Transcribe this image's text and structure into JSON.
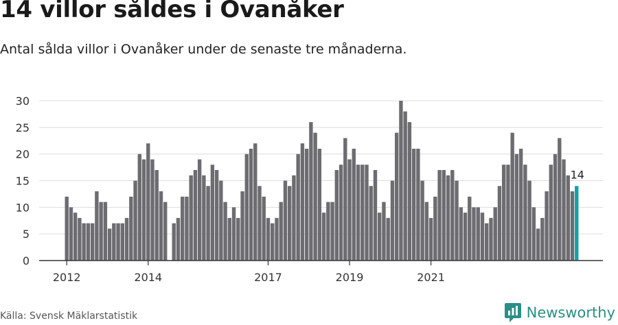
{
  "header": {
    "title": "14 villor såldes i Ovanåker",
    "subtitle": "Antal sålda villor i Ovanåker under de senaste tre månaderna."
  },
  "footer": {
    "source": "Källa: Svensk Mäklarstatistik",
    "brand": "Newsworthy"
  },
  "colors": {
    "bar": "#6d6c71",
    "highlight": "#12a2a5",
    "grid": "#dcdcdc",
    "axis": "#333333",
    "brand": "#2a8f85"
  },
  "icons": {
    "logo": "newsworthy-logo-icon"
  },
  "chart_data": {
    "type": "bar",
    "title": "14 villor såldes i Ovanåker",
    "subtitle": "Antal sålda villor i Ovanåker under de senaste tre månaderna.",
    "xlabel": "",
    "ylabel": "",
    "ylim": [
      0,
      30
    ],
    "yticks": [
      0,
      5,
      10,
      15,
      20,
      25,
      30
    ],
    "grid": true,
    "legend": "none",
    "x_tick_labels": [
      {
        "label": "2012",
        "index": 0
      },
      {
        "label": "2014",
        "index": 19
      },
      {
        "label": "2017",
        "index": 47
      },
      {
        "label": "2019",
        "index": 66
      },
      {
        "label": "2021",
        "index": 85
      }
    ],
    "highlight_label": "14",
    "series": [
      {
        "values": [
          12,
          10,
          9,
          8,
          7,
          7,
          7,
          13,
          11,
          11,
          6,
          7,
          7,
          7,
          8,
          12,
          15,
          20,
          19,
          22,
          19,
          17,
          13,
          11,
          0,
          7,
          8,
          12,
          12,
          16,
          17,
          19,
          16,
          14,
          18,
          17,
          15,
          11,
          8,
          10,
          8,
          13,
          20,
          21,
          22,
          14,
          12,
          8,
          7,
          8,
          11,
          15,
          14,
          16,
          20,
          22,
          21,
          26,
          24,
          21,
          9,
          11,
          11,
          17,
          18,
          23,
          19,
          21,
          18,
          18,
          18,
          14,
          17,
          9,
          11,
          8,
          15,
          24,
          30,
          28,
          26,
          21,
          21,
          15,
          11,
          8,
          12,
          17,
          17,
          16,
          17,
          15,
          10,
          9,
          12,
          10,
          10,
          9,
          7,
          8,
          10,
          14,
          18,
          18,
          24,
          20,
          21,
          18,
          15,
          10,
          6,
          8,
          13,
          18,
          20,
          23,
          19,
          16,
          13,
          14
        ],
        "highlight_last": true
      }
    ]
  }
}
